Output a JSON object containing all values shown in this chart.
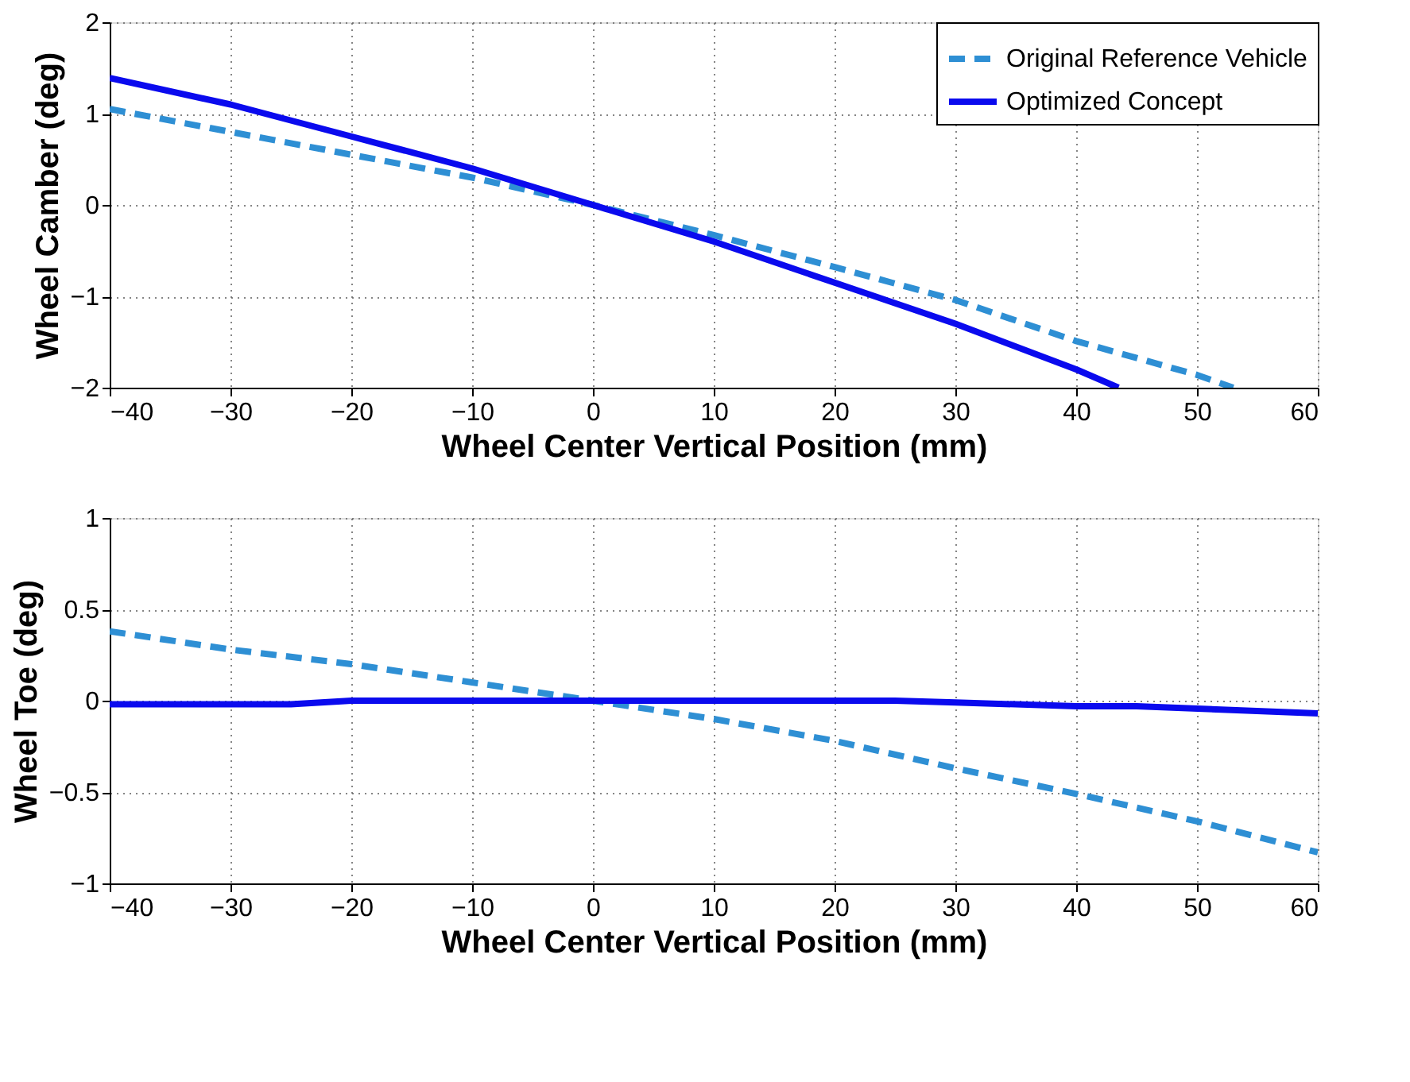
{
  "chart_data": [
    {
      "type": "line",
      "xlabel": "Wheel Center Vertical Position (mm)",
      "ylabel": "Wheel Camber (deg)",
      "xlim": [
        -40,
        60
      ],
      "xticks": [
        -40,
        -30,
        -20,
        -10,
        0,
        10,
        20,
        30,
        40,
        50,
        60
      ],
      "ylim": [
        -2,
        2
      ],
      "yticks": [
        -2,
        -1,
        0,
        1,
        2
      ],
      "grid": true,
      "legend": "top right",
      "marker": "none",
      "series": [
        {
          "name": "Original Reference Vehicle",
          "color": "#2e8fd4",
          "line_style": "dashed",
          "x": [
            -40,
            -30,
            -20,
            -10,
            0,
            10,
            20,
            30,
            40,
            50,
            53
          ],
          "values": [
            1.05,
            0.8,
            0.55,
            0.3,
            0,
            -0.33,
            -0.68,
            -1.04,
            -1.49,
            -1.86,
            -2.0
          ]
        },
        {
          "name": "Optimized Concept",
          "color": "#0a0aee",
          "line_style": "solid",
          "x": [
            -40,
            -30,
            -20,
            -10,
            0,
            10,
            20,
            30,
            40,
            43.5
          ],
          "values": [
            1.39,
            1.1,
            0.75,
            0.4,
            0,
            -0.4,
            -0.85,
            -1.3,
            -1.8,
            -2.0
          ]
        }
      ]
    },
    {
      "type": "line",
      "xlabel": "Wheel Center Vertical Position (mm)",
      "ylabel": "Wheel Toe (deg)",
      "xlim": [
        -40,
        60
      ],
      "xticks": [
        -40,
        -30,
        -20,
        -10,
        0,
        10,
        20,
        30,
        40,
        50,
        60
      ],
      "ylim": [
        -1,
        1
      ],
      "yticks": [
        -1,
        -0.5,
        0,
        0.5,
        1
      ],
      "grid": true,
      "marker": "none",
      "series": [
        {
          "color": "#2e8fd4",
          "line_style": "dashed",
          "x": [
            -40,
            -30,
            -20,
            -10,
            0,
            10,
            20,
            30,
            40,
            50,
            60
          ],
          "values": [
            0.38,
            0.28,
            0.2,
            0.1,
            0,
            -0.1,
            -0.22,
            -0.37,
            -0.51,
            -0.66,
            -0.83
          ]
        },
        {
          "color": "#0a0aee",
          "line_style": "solid",
          "x": [
            -40,
            -25,
            -20,
            0,
            25,
            30,
            40,
            45,
            60
          ],
          "values": [
            -0.02,
            -0.02,
            0,
            0,
            0,
            -0.01,
            -0.03,
            -0.03,
            -0.07
          ]
        }
      ]
    }
  ]
}
